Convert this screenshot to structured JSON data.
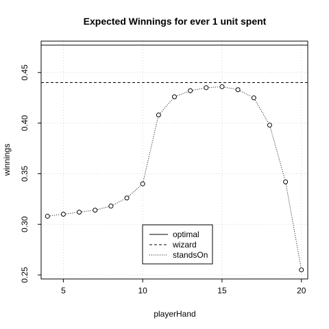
{
  "chart_data": {
    "type": "line",
    "title": "Expected Winnings for ever 1 unit spent",
    "xlabel": "playerHand",
    "ylabel": "winnings",
    "xlim": [
      3.6,
      20.4
    ],
    "ylim": [
      0.246,
      0.481
    ],
    "x_ticks": [
      5,
      10,
      15,
      20
    ],
    "y_ticks": [
      0.25,
      0.3,
      0.35,
      0.4,
      0.45
    ],
    "y_tick_labels": [
      "0.25",
      "0.30",
      "0.35",
      "0.40",
      "0.45"
    ],
    "grid": true,
    "legend_position": "bottom-center",
    "series": [
      {
        "name": "optimal",
        "style": "solid-horizontal-line",
        "value": 0.477
      },
      {
        "name": "wizard",
        "style": "dashed-horizontal-line",
        "value": 0.44
      },
      {
        "name": "standsOn",
        "style": "dotted-line-with-circles",
        "x": [
          4,
          5,
          6,
          7,
          8,
          9,
          10,
          11,
          12,
          13,
          14,
          15,
          16,
          17,
          18,
          19,
          20
        ],
        "values": [
          0.308,
          0.31,
          0.312,
          0.314,
          0.318,
          0.326,
          0.34,
          0.408,
          0.426,
          0.432,
          0.435,
          0.436,
          0.433,
          0.425,
          0.398,
          0.342,
          0.255
        ]
      }
    ]
  }
}
